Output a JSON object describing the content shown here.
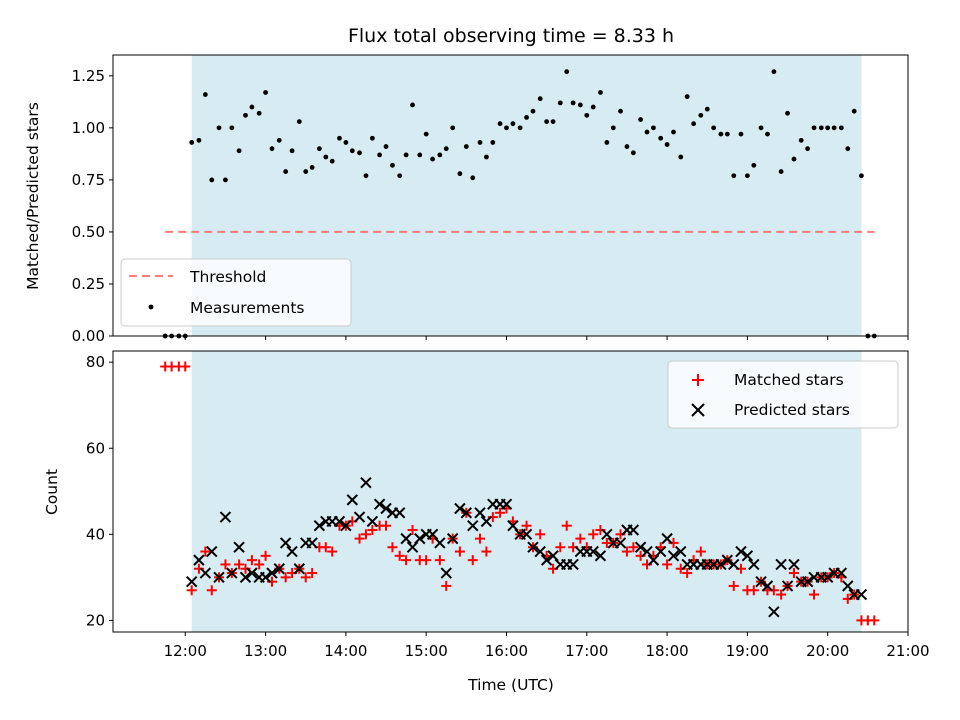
{
  "chart_data": [
    {
      "type": "scatter",
      "title": "Flux total observing time = 8.33 h",
      "xlabel": "",
      "ylabel": "Matched/Predicted stars",
      "xlim": [
        11.1,
        21.0
      ],
      "ylim": [
        0.0,
        1.35
      ],
      "yticks": [
        0.0,
        0.25,
        0.5,
        0.75,
        1.0,
        1.25
      ],
      "ytick_labels": [
        "0.00",
        "0.25",
        "0.50",
        "0.75",
        "1.00",
        "1.25"
      ],
      "shaded_region": [
        12.08,
        20.42
      ],
      "threshold": {
        "name": "Threshold",
        "value": 0.5,
        "x_range": [
          11.75,
          20.58
        ],
        "color": "#ff7b7b"
      },
      "legend": {
        "position": "lower-left",
        "entries": [
          "Threshold",
          "Measurements"
        ]
      },
      "series": [
        {
          "name": "Measurements",
          "color": "#000000",
          "x": [
            11.75,
            11.83,
            11.92,
            12.0,
            12.08,
            12.17,
            12.25,
            12.33,
            12.42,
            12.5,
            12.58,
            12.67,
            12.75,
            12.83,
            12.92,
            13.0,
            13.08,
            13.17,
            13.25,
            13.33,
            13.42,
            13.5,
            13.58,
            13.67,
            13.75,
            13.83,
            13.92,
            14.0,
            14.08,
            14.17,
            14.25,
            14.33,
            14.42,
            14.5,
            14.58,
            14.67,
            14.75,
            14.83,
            14.92,
            15.0,
            15.08,
            15.17,
            15.25,
            15.33,
            15.42,
            15.5,
            15.58,
            15.67,
            15.75,
            15.83,
            15.92,
            16.0,
            16.08,
            16.17,
            16.25,
            16.33,
            16.42,
            16.5,
            16.58,
            16.67,
            16.75,
            16.83,
            16.92,
            17.0,
            17.08,
            17.17,
            17.25,
            17.33,
            17.42,
            17.5,
            17.58,
            17.67,
            17.75,
            17.83,
            17.92,
            18.0,
            18.08,
            18.17,
            18.25,
            18.33,
            18.42,
            18.5,
            18.58,
            18.67,
            18.75,
            18.83,
            18.92,
            19.0,
            19.08,
            19.17,
            19.25,
            19.33,
            19.42,
            19.5,
            19.58,
            19.67,
            19.75,
            19.83,
            19.92,
            20.0,
            20.08,
            20.17,
            20.25,
            20.33,
            20.42,
            20.5,
            20.58
          ],
          "y": [
            0.0,
            0.0,
            0.0,
            0.0,
            0.93,
            0.94,
            1.16,
            0.75,
            1.0,
            0.75,
            1.0,
            0.89,
            1.06,
            1.1,
            1.07,
            1.17,
            0.9,
            0.94,
            0.79,
            0.89,
            1.03,
            0.79,
            0.81,
            0.9,
            0.86,
            0.84,
            0.95,
            0.93,
            0.89,
            0.88,
            0.77,
            0.95,
            0.87,
            0.91,
            0.82,
            0.77,
            0.87,
            1.11,
            0.87,
            0.97,
            0.85,
            0.87,
            0.9,
            1.0,
            0.78,
            0.91,
            0.76,
            0.93,
            0.86,
            0.93,
            1.02,
            1.0,
            1.02,
            1.0,
            1.05,
            1.08,
            1.14,
            1.03,
            1.03,
            1.12,
            1.27,
            1.12,
            1.11,
            1.06,
            1.1,
            1.17,
            0.93,
            1.0,
            1.08,
            0.91,
            0.88,
            1.04,
            0.98,
            1.0,
            0.95,
            0.92,
            0.98,
            0.86,
            1.15,
            1.02,
            1.06,
            1.09,
            1.0,
            0.97,
            0.97,
            0.77,
            0.97,
            0.77,
            0.82,
            1.0,
            0.97,
            1.27,
            0.79,
            1.07,
            0.85,
            0.94,
            0.9,
            1.0,
            1.0,
            1.0,
            1.0,
            1.0,
            0.9,
            1.08,
            0.77,
            0.0,
            0.0
          ]
        }
      ]
    },
    {
      "type": "scatter",
      "title": "",
      "xlabel": "Time (UTC)",
      "ylabel": "Count",
      "xlim": [
        11.1,
        21.0
      ],
      "ylim": [
        17.3,
        82.6
      ],
      "xticks": [
        12,
        13,
        14,
        15,
        16,
        17,
        18,
        19,
        20,
        21
      ],
      "xtick_labels": [
        "12:00",
        "13:00",
        "14:00",
        "15:00",
        "16:00",
        "17:00",
        "18:00",
        "19:00",
        "20:00",
        "21:00"
      ],
      "yticks": [
        20,
        40,
        60,
        80
      ],
      "ytick_labels": [
        "20",
        "40",
        "60",
        "80"
      ],
      "shaded_region": [
        12.08,
        20.42
      ],
      "legend": {
        "position": "upper-right",
        "entries": [
          "Matched stars",
          "Predicted stars"
        ]
      },
      "series": [
        {
          "name": "Matched stars",
          "marker": "plus",
          "color": "#ff0000",
          "x": [
            11.75,
            11.83,
            11.92,
            12.0,
            12.08,
            12.17,
            12.25,
            12.33,
            12.42,
            12.5,
            12.58,
            12.67,
            12.75,
            12.83,
            12.92,
            13.0,
            13.08,
            13.17,
            13.25,
            13.33,
            13.42,
            13.5,
            13.58,
            13.67,
            13.75,
            13.83,
            13.92,
            14.0,
            14.08,
            14.17,
            14.25,
            14.33,
            14.42,
            14.5,
            14.58,
            14.67,
            14.75,
            14.83,
            14.92,
            15.0,
            15.08,
            15.17,
            15.25,
            15.33,
            15.42,
            15.5,
            15.58,
            15.67,
            15.75,
            15.83,
            15.92,
            16.0,
            16.08,
            16.17,
            16.25,
            16.33,
            16.42,
            16.5,
            16.58,
            16.67,
            16.75,
            16.83,
            16.92,
            17.0,
            17.08,
            17.17,
            17.25,
            17.33,
            17.42,
            17.5,
            17.58,
            17.67,
            17.75,
            17.83,
            17.92,
            18.0,
            18.08,
            18.17,
            18.25,
            18.33,
            18.42,
            18.5,
            18.58,
            18.67,
            18.75,
            18.83,
            18.92,
            19.0,
            19.08,
            19.17,
            19.25,
            19.33,
            19.42,
            19.5,
            19.58,
            19.67,
            19.75,
            19.83,
            19.92,
            20.0,
            20.08,
            20.17,
            20.25,
            20.33,
            20.42,
            20.5,
            20.58
          ],
          "y": [
            79,
            79,
            79,
            79,
            27,
            32,
            36,
            27,
            30,
            33,
            31,
            33,
            32,
            34,
            33,
            35,
            29,
            32,
            30,
            31,
            32,
            30,
            31,
            37,
            37,
            36,
            42,
            42,
            43,
            39,
            40,
            41,
            42,
            42,
            37,
            35,
            34,
            41,
            34,
            34,
            39,
            34,
            28,
            39,
            36,
            45,
            34,
            39,
            36,
            44,
            45,
            46,
            43,
            40,
            42,
            37,
            40,
            35,
            32,
            37,
            42,
            37,
            39,
            37,
            40,
            41,
            38,
            38,
            40,
            36,
            37,
            35,
            33,
            35,
            37,
            33,
            38,
            32,
            31,
            34,
            36,
            33,
            33,
            33,
            34,
            28,
            32,
            27,
            27,
            29,
            27,
            27,
            26,
            28,
            31,
            29,
            29,
            26,
            30,
            30,
            31,
            30,
            25,
            26,
            20,
            20,
            20
          ]
        },
        {
          "name": "Predicted stars",
          "marker": "x",
          "color": "#000000",
          "x": [
            12.08,
            12.17,
            12.25,
            12.33,
            12.42,
            12.5,
            12.58,
            12.67,
            12.75,
            12.83,
            12.92,
            13.0,
            13.08,
            13.17,
            13.25,
            13.33,
            13.42,
            13.5,
            13.58,
            13.67,
            13.75,
            13.83,
            13.92,
            14.0,
            14.08,
            14.17,
            14.25,
            14.33,
            14.42,
            14.5,
            14.58,
            14.67,
            14.75,
            14.83,
            14.92,
            15.0,
            15.08,
            15.17,
            15.25,
            15.33,
            15.42,
            15.5,
            15.58,
            15.67,
            15.75,
            15.83,
            15.92,
            16.0,
            16.08,
            16.17,
            16.25,
            16.33,
            16.42,
            16.5,
            16.58,
            16.67,
            16.75,
            16.83,
            16.92,
            17.0,
            17.08,
            17.17,
            17.25,
            17.33,
            17.42,
            17.5,
            17.58,
            17.67,
            17.75,
            17.83,
            17.92,
            18.0,
            18.08,
            18.17,
            18.25,
            18.33,
            18.42,
            18.5,
            18.58,
            18.67,
            18.75,
            18.83,
            18.92,
            19.0,
            19.08,
            19.17,
            19.25,
            19.33,
            19.42,
            19.5,
            19.58,
            19.67,
            19.75,
            19.83,
            19.92,
            20.0,
            20.08,
            20.17,
            20.25,
            20.33,
            20.42
          ],
          "y": [
            29,
            34,
            31,
            36,
            30,
            44,
            31,
            37,
            30,
            31,
            30,
            30,
            31,
            32,
            38,
            36,
            32,
            38,
            38,
            42,
            43,
            43,
            43,
            42,
            48,
            44,
            52,
            43,
            47,
            46,
            45,
            45,
            39,
            37,
            39,
            40,
            40,
            38,
            31,
            39,
            46,
            45,
            42,
            45,
            43,
            47,
            47,
            47,
            42,
            40,
            40,
            37,
            36,
            34,
            35,
            33,
            33,
            33,
            36,
            36,
            36,
            35,
            40,
            38,
            38,
            41,
            41,
            37,
            36,
            34,
            36,
            39,
            35,
            36,
            33,
            33,
            33,
            33,
            33,
            33,
            34,
            33,
            36,
            35,
            33,
            29,
            28,
            22,
            33,
            28,
            33,
            29,
            29,
            30,
            30,
            30,
            31,
            31,
            28,
            26,
            26
          ]
        }
      ]
    }
  ]
}
